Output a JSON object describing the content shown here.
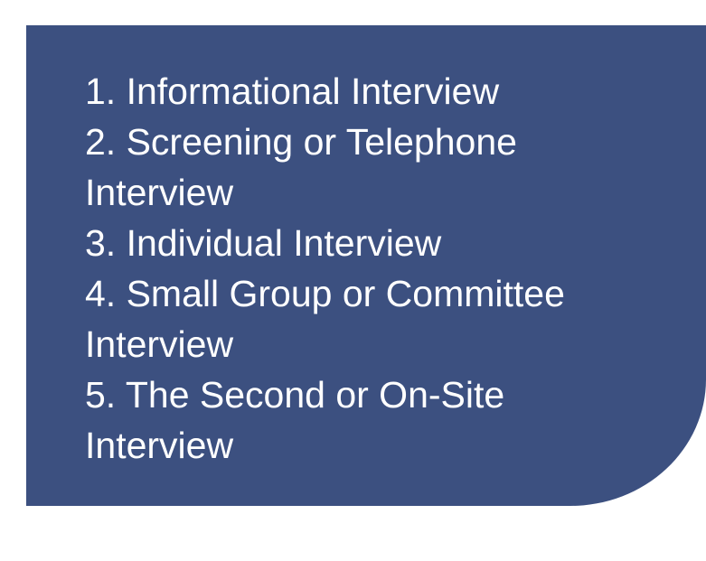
{
  "interview_types": [
    "1. Informational Interview",
    "2. Screening or Telephone Interview",
    "3. Individual Interview",
    "4. Small Group or Committee Interview",
    "5. The Second or On-Site Interview"
  ],
  "colors": {
    "panel_background": "#3c5080",
    "text": "#ffffff",
    "page_background": "#ffffff"
  }
}
